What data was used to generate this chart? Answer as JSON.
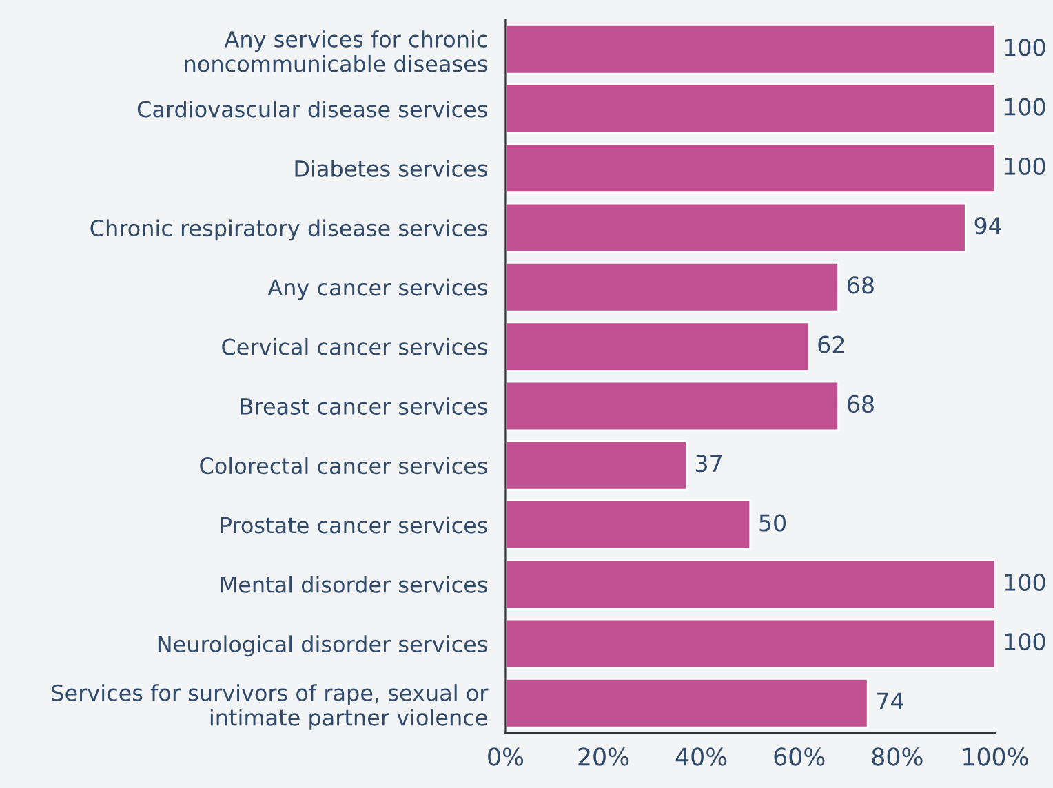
{
  "chart_data": {
    "type": "bar",
    "orientation": "horizontal",
    "categories": [
      "Any services for chronic\nnoncommunicable diseases",
      "Cardiovascular disease services",
      "Diabetes services",
      "Chronic respiratory disease services",
      "Any cancer services",
      "Cervical cancer services",
      "Breast cancer services",
      "Colorectal cancer services",
      "Prostate cancer services",
      "Mental disorder services",
      "Neurological disorder services",
      "Services for survivors of rape, sexual or\nintimate partner violence"
    ],
    "values": [
      100,
      100,
      100,
      94,
      68,
      62,
      68,
      37,
      50,
      100,
      100,
      74
    ],
    "color": "#c0508f",
    "xlim": [
      0,
      100
    ],
    "xticks": [
      {
        "value": 0,
        "label": "0%"
      },
      {
        "value": 20,
        "label": "20%"
      },
      {
        "value": 40,
        "label": "40%"
      },
      {
        "value": 60,
        "label": "60%"
      },
      {
        "value": 80,
        "label": "80%"
      },
      {
        "value": 100,
        "label": "100%"
      }
    ],
    "data_labels": true,
    "grid": false,
    "legend": false
  }
}
